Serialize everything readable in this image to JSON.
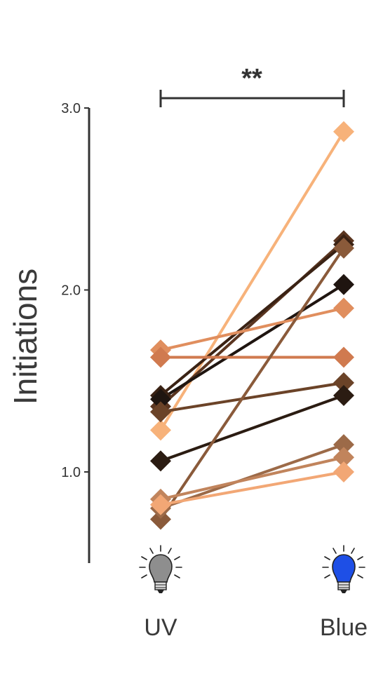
{
  "chart_data": {
    "type": "line",
    "ylabel": "Initiations",
    "categories": [
      "UV",
      "Blue"
    ],
    "ylim": [
      0.5,
      3.0
    ],
    "yticks": [
      1.0,
      2.0,
      3.0
    ],
    "ytick_labels": [
      "1.0",
      "2.0",
      "3.0"
    ],
    "significance": {
      "label": "**",
      "between": [
        "UV",
        "Blue"
      ]
    },
    "icons": [
      "gray-light-bulb-icon",
      "blue-light-bulb-icon"
    ],
    "pairs": [
      {
        "values": [
          1.23,
          2.87
        ],
        "color": "#f7b27a"
      },
      {
        "values": [
          1.36,
          2.27
        ],
        "color": "#5a3520"
      },
      {
        "values": [
          1.42,
          2.25
        ],
        "color": "#3a2214"
      },
      {
        "values": [
          1.4,
          2.03
        ],
        "color": "#1f1510"
      },
      {
        "values": [
          1.67,
          1.9
        ],
        "color": "#e08e5e"
      },
      {
        "values": [
          1.63,
          1.63
        ],
        "color": "#d07a4f"
      },
      {
        "values": [
          1.33,
          1.49
        ],
        "color": "#6b4328"
      },
      {
        "values": [
          1.06,
          1.42
        ],
        "color": "#2b1c12"
      },
      {
        "values": [
          0.74,
          2.23
        ],
        "color": "#8a5a3a"
      },
      {
        "values": [
          0.8,
          1.15
        ],
        "color": "#9c6a48"
      },
      {
        "values": [
          0.85,
          1.08
        ],
        "color": "#c1845c"
      },
      {
        "values": [
          0.82,
          1.0
        ],
        "color": "#f2a775"
      }
    ]
  }
}
